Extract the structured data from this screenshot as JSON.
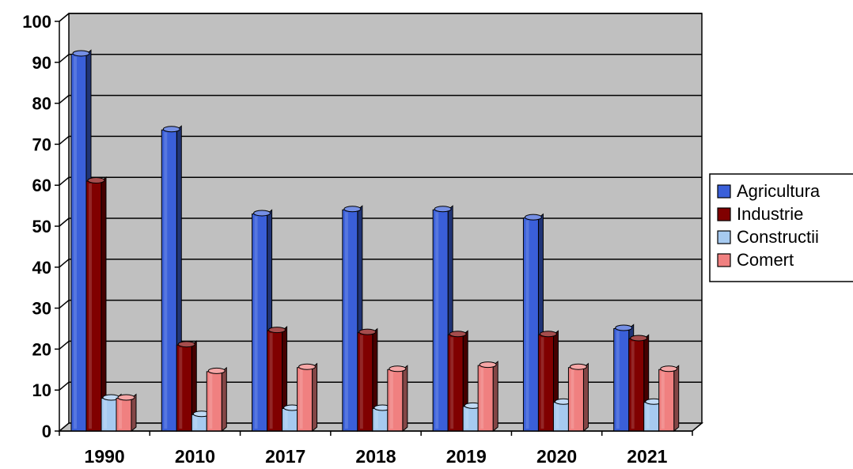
{
  "chart_data": {
    "type": "bar",
    "title": "",
    "xlabel": "",
    "ylabel": "",
    "ylim": [
      0,
      100
    ],
    "yticks": [
      0,
      10,
      20,
      30,
      40,
      50,
      60,
      70,
      80,
      90,
      100
    ],
    "grid": true,
    "legend_position": "right",
    "categories": [
      "1990",
      "2010",
      "2017",
      "2018",
      "2019",
      "2020",
      "2021"
    ],
    "series": [
      {
        "name": "Agricultura",
        "color": "#3a5fd9",
        "values": [
          92,
          73.5,
          53,
          54,
          54,
          52,
          25
        ]
      },
      {
        "name": "Industrie",
        "color": "#800000",
        "values": [
          61,
          21,
          24.5,
          24,
          23.5,
          23.5,
          22.5
        ]
      },
      {
        "name": "Constructii",
        "color": "#a6caf0",
        "values": [
          8,
          4,
          5.5,
          5.5,
          6,
          7,
          7
        ]
      },
      {
        "name": "Comert",
        "color": "#f08080",
        "values": [
          8,
          14.5,
          15.5,
          15,
          16,
          15.5,
          15
        ]
      }
    ],
    "plot_background": "#c0c0c0"
  }
}
